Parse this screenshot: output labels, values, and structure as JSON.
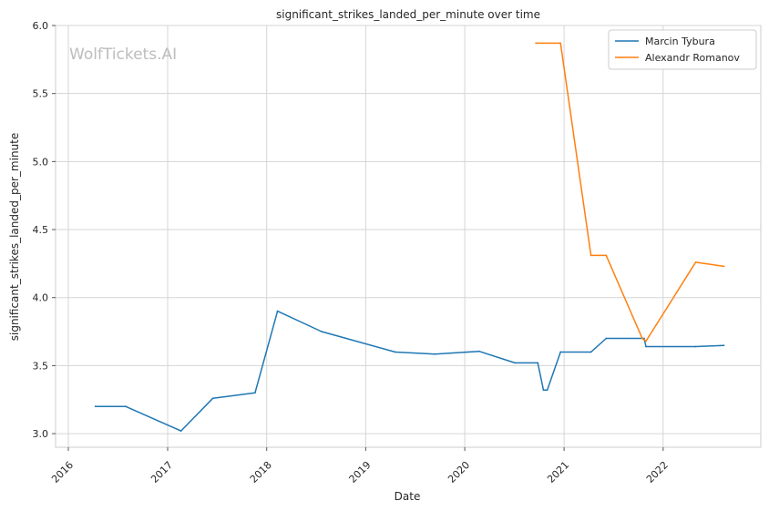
{
  "watermark": "WolfTickets.AI",
  "chart_data": {
    "type": "line",
    "title": "significant_strikes_landed_per_minute over time",
    "xlabel": "Date",
    "ylabel": "significant_strikes_landed_per_minute",
    "xlim": [
      "2015-11-15",
      "2022-12-27"
    ],
    "ylim": [
      2.9,
      6.0
    ],
    "xticks": [
      "2016",
      "2017",
      "2018",
      "2019",
      "2020",
      "2021",
      "2022"
    ],
    "yticks": [
      "3.0",
      "3.5",
      "4.0",
      "4.5",
      "5.0",
      "5.5",
      "6.0"
    ],
    "grid": true,
    "legend_position": "top-right",
    "series": [
      {
        "name": "Marcin Tybura",
        "color": "#1f77b4",
        "x": [
          "2016-04-10",
          "2016-07-30",
          "2017-02-19",
          "2017-06-17",
          "2017-11-19",
          "2018-02-10",
          "2018-07-22",
          "2019-04-20",
          "2019-09-14",
          "2020-02-23",
          "2020-07-04",
          "2020-09-26",
          "2020-10-17",
          "2020-10-31",
          "2020-12-19",
          "2021-04-10",
          "2021-06-05",
          "2021-10-23",
          "2021-10-30",
          "2022-04-30",
          "2022-08-13"
        ],
        "y": [
          3.2,
          3.2,
          3.02,
          3.26,
          3.3,
          3.9,
          3.75,
          3.6,
          3.585,
          3.605,
          3.52,
          3.52,
          3.32,
          3.32,
          3.6,
          3.6,
          3.7,
          3.7,
          3.64,
          3.64,
          3.648
        ]
      },
      {
        "name": "Alexandr Romanov",
        "color": "#ff7f0e",
        "x": [
          "2020-09-19",
          "2020-12-19",
          "2021-04-10",
          "2021-06-05",
          "2021-10-16",
          "2021-10-30",
          "2022-05-01",
          "2022-08-13"
        ],
        "y": [
          5.87,
          5.87,
          4.31,
          4.31,
          3.7,
          3.68,
          4.26,
          4.23
        ]
      }
    ]
  }
}
